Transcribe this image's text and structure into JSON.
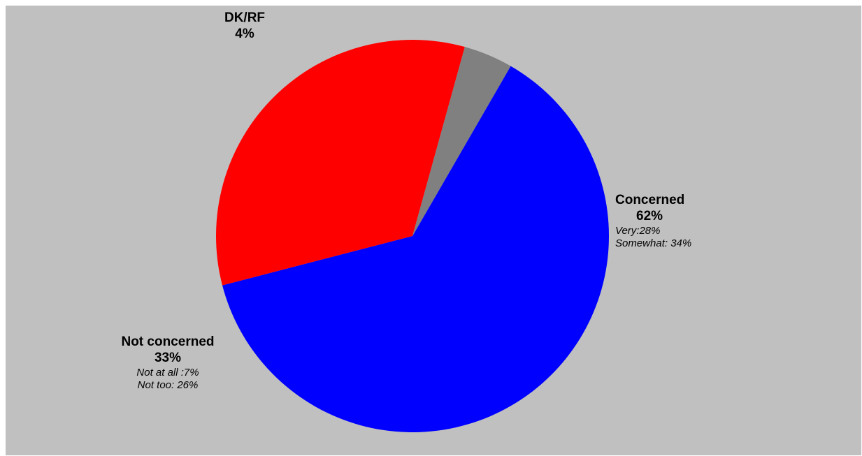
{
  "chart_data": {
    "type": "pie",
    "slices": [
      {
        "name": "Concerned",
        "value": 62,
        "value_label": "62%",
        "color": "#0000ff",
        "details": [
          "Very:28%",
          "Somewhat: 34%"
        ]
      },
      {
        "name": "Not concerned",
        "value": 33,
        "value_label": "33%",
        "color": "#ff0000",
        "details": [
          "Not at all :7%",
          "Not too: 26%"
        ]
      },
      {
        "name": "DK/RF",
        "value": 4,
        "value_label": "4%",
        "color": "#808080",
        "details": []
      }
    ],
    "start_angle_deg": 30,
    "direction": "clockwise",
    "background_color": "#c0c0c0"
  }
}
